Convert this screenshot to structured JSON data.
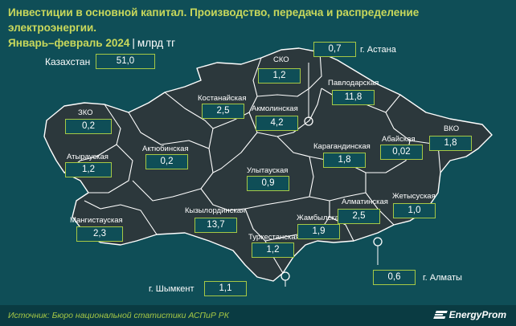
{
  "title": {
    "line1": "Инвестиции в основной капитал. Производство, передача и распределение электроэнергии.",
    "line2": "Январь–февраль 2024",
    "unit": "млрд тг"
  },
  "total": {
    "label": "Казахстан",
    "value": "51,0"
  },
  "regions": [
    {
      "key": "zko",
      "name": "ЗКО",
      "value": "0,2"
    },
    {
      "key": "atyrau",
      "name": "Атырауская",
      "value": "1,2"
    },
    {
      "key": "mangistau",
      "name": "Мангистауская",
      "value": "2,3"
    },
    {
      "key": "aktobe",
      "name": "Актюбинская",
      "value": "0,2"
    },
    {
      "key": "kostanay",
      "name": "Костанайская",
      "value": "2,5"
    },
    {
      "key": "sko",
      "name": "СКО",
      "value": "1,2"
    },
    {
      "key": "akmola",
      "name": "Акмолинская",
      "value": "4,2"
    },
    {
      "key": "pavlodar",
      "name": "Павлодарская",
      "value": "11,8"
    },
    {
      "key": "abai",
      "name": "Абайская",
      "value": "0,02"
    },
    {
      "key": "vko",
      "name": "ВКО",
      "value": "1,8"
    },
    {
      "key": "karaganda",
      "name": "Карагандинская",
      "value": "1,8"
    },
    {
      "key": "ulytau",
      "name": "Улытауская",
      "value": "0,9"
    },
    {
      "key": "kyzylorda",
      "name": "Кызылординская",
      "value": "13,7"
    },
    {
      "key": "turkestan",
      "name": "Туркестанская",
      "value": "1,2"
    },
    {
      "key": "zhambyl",
      "name": "Жамбылская",
      "value": "1,9"
    },
    {
      "key": "almaty_obl",
      "name": "Алматинская",
      "value": "2,5"
    },
    {
      "key": "zhetysu",
      "name": "Жетысуская",
      "value": "1,0"
    }
  ],
  "cities": [
    {
      "key": "astana",
      "name": "г. Астана",
      "value": "0,7"
    },
    {
      "key": "almaty",
      "name": "г. Алматы",
      "value": "0,6"
    },
    {
      "key": "shymkent",
      "name": "г. Шымкент",
      "value": "1,1"
    }
  ],
  "footer": {
    "source": "Источник: Бюро национальной статистики АСПиР РК",
    "brand": "EnergyProm"
  },
  "colors": {
    "background": "#0f4e57",
    "land": "#2c383c",
    "border": "#ffffff",
    "accent": "#a6c845",
    "title": "#c9d85b"
  }
}
